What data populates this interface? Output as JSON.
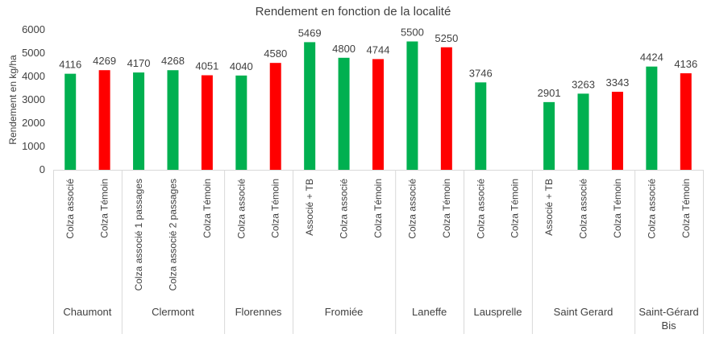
{
  "chart_data": {
    "type": "bar",
    "title": "Rendement en fonction de la localité",
    "ylabel": "Rendement en kg/ha",
    "xlabel": "",
    "ylim": [
      0,
      6000
    ],
    "yticks": [
      0,
      1000,
      2000,
      3000,
      4000,
      5000,
      6000
    ],
    "grid": false,
    "legend": "none",
    "colors": {
      "associated": "#00b050",
      "control": "#ff0000"
    },
    "groups": [
      {
        "name": "Chaumont",
        "bars": [
          {
            "label": "Colza associé",
            "value": 4116,
            "kind": "associated"
          },
          {
            "label": "Colza Témoin",
            "value": 4269,
            "kind": "control"
          }
        ]
      },
      {
        "name": "Clermont",
        "bars": [
          {
            "label": "Colza associé 1 passages",
            "value": 4170,
            "kind": "associated"
          },
          {
            "label": "Colza associé 2 passages",
            "value": 4268,
            "kind": "associated"
          },
          {
            "label": "Colza Témoin",
            "value": 4051,
            "kind": "control"
          }
        ]
      },
      {
        "name": "Florennes",
        "bars": [
          {
            "label": "Colza associé",
            "value": 4040,
            "kind": "associated"
          },
          {
            "label": "Colza Témoin",
            "value": 4580,
            "kind": "control"
          }
        ]
      },
      {
        "name": "Fromiée",
        "bars": [
          {
            "label": "Associé + TB",
            "value": 5469,
            "kind": "associated"
          },
          {
            "label": "Colza associé",
            "value": 4800,
            "kind": "associated"
          },
          {
            "label": "Colza Témoin",
            "value": 4744,
            "kind": "control"
          }
        ]
      },
      {
        "name": "Laneffe",
        "bars": [
          {
            "label": "Colza associé",
            "value": 5500,
            "kind": "associated"
          },
          {
            "label": "Colza Témoin",
            "value": 5250,
            "kind": "control"
          }
        ]
      },
      {
        "name": "Lausprelle",
        "bars": [
          {
            "label": "Colza associé",
            "value": 3746,
            "kind": "associated"
          },
          {
            "label": "Colza Témoin",
            "value": null,
            "kind": "control"
          }
        ]
      },
      {
        "name": "Saint Gerard",
        "bars": [
          {
            "label": "Associé + TB",
            "value": 2901,
            "kind": "associated"
          },
          {
            "label": "Colza associé",
            "value": 3263,
            "kind": "associated"
          },
          {
            "label": "Colza Témoin",
            "value": 3343,
            "kind": "control"
          }
        ]
      },
      {
        "name": "Saint-Gérard Bis",
        "bars": [
          {
            "label": "Colza associé",
            "value": 4424,
            "kind": "associated"
          },
          {
            "label": "Colza Témoin",
            "value": 4136,
            "kind": "control"
          }
        ]
      }
    ]
  }
}
